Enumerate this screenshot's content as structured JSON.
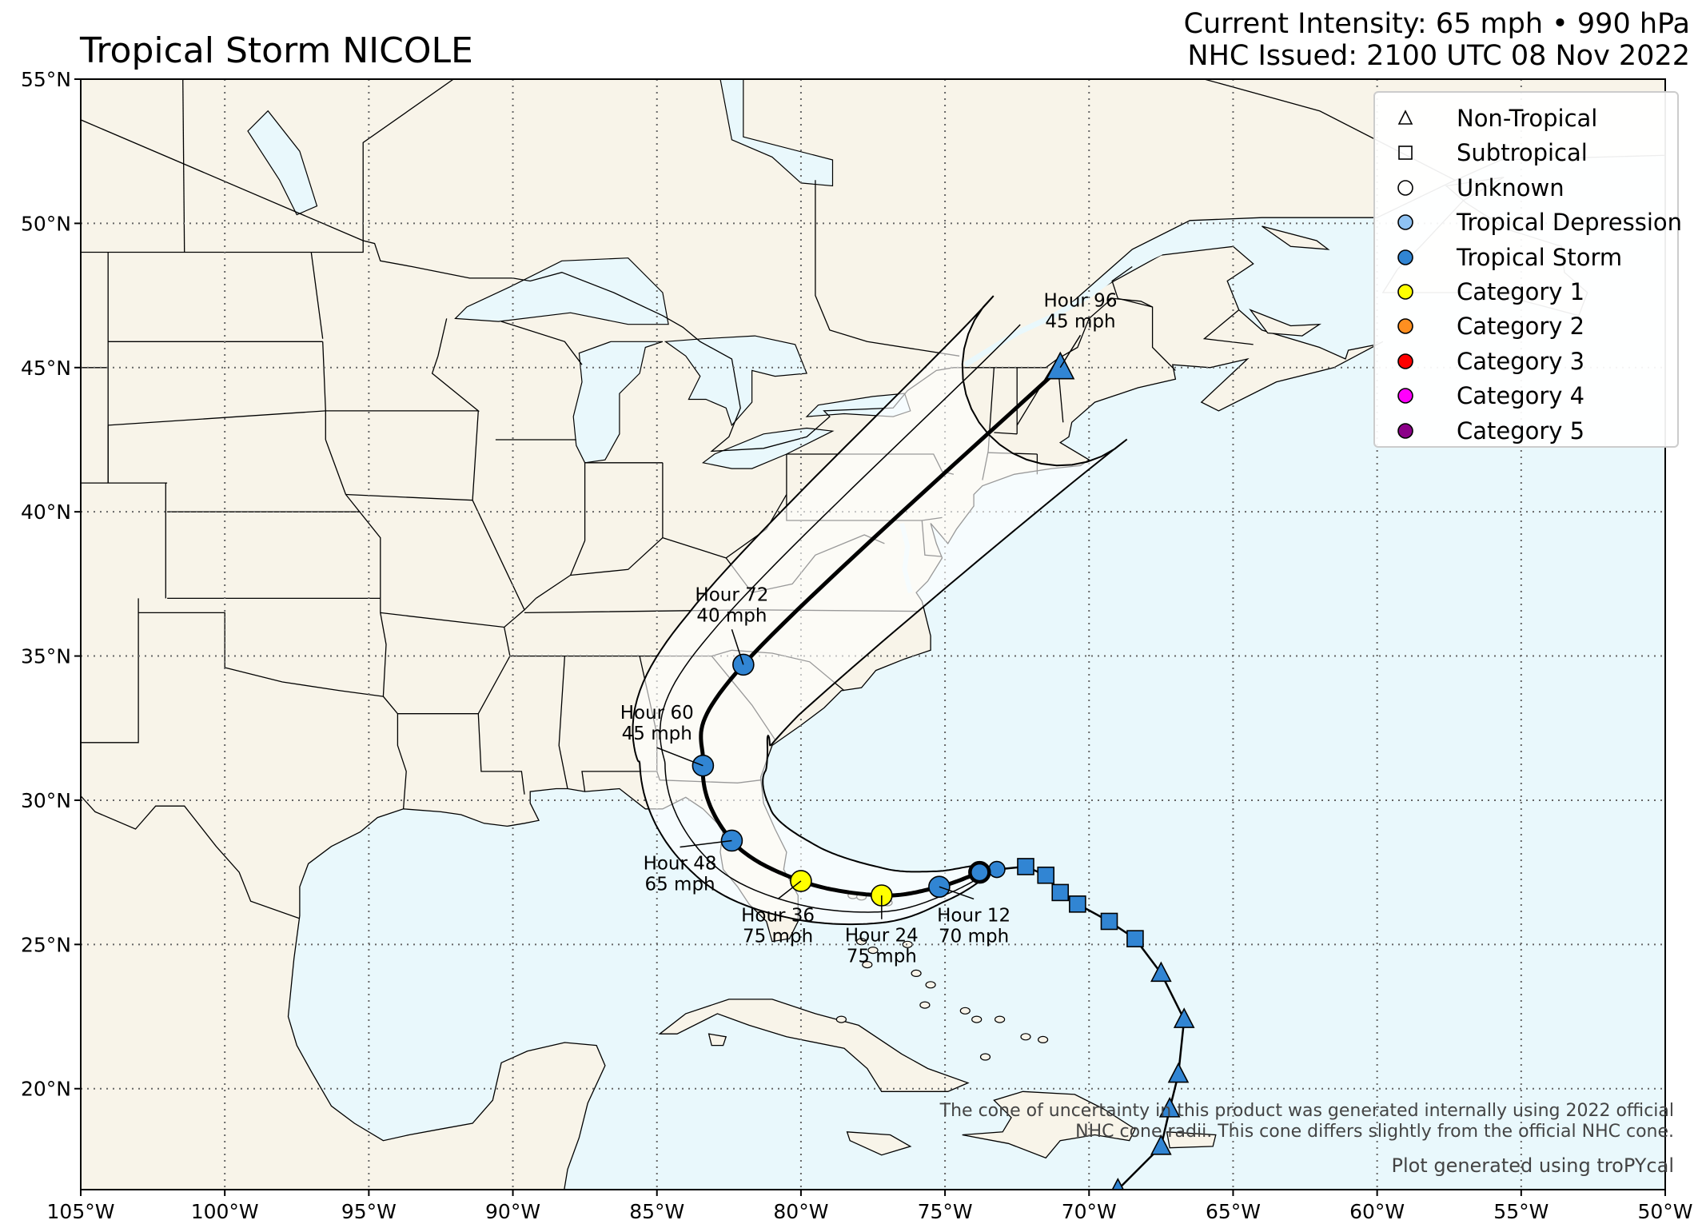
{
  "header": {
    "title": "Tropical Storm NICOLE",
    "intensity": "Current Intensity: 65 mph • 990 hPa",
    "issued": "NHC Issued: 2100 UTC 08 Nov 2022"
  },
  "map": {
    "lon_range": [
      -105,
      -50
    ],
    "lat_range": [
      16.5,
      55
    ],
    "lon_ticks": [
      {
        "value": -105,
        "label": "105°W"
      },
      {
        "value": -100,
        "label": "100°W"
      },
      {
        "value": -95,
        "label": "95°W"
      },
      {
        "value": -90,
        "label": "90°W"
      },
      {
        "value": -85,
        "label": "85°W"
      },
      {
        "value": -80,
        "label": "80°W"
      },
      {
        "value": -75,
        "label": "75°W"
      },
      {
        "value": -70,
        "label": "70°W"
      },
      {
        "value": -65,
        "label": "65°W"
      },
      {
        "value": -60,
        "label": "60°W"
      },
      {
        "value": -55,
        "label": "55°W"
      },
      {
        "value": -50,
        "label": "50°W"
      }
    ],
    "lat_ticks": [
      {
        "value": 55,
        "label": "55°N"
      },
      {
        "value": 50,
        "label": "50°N"
      },
      {
        "value": 45,
        "label": "45°N"
      },
      {
        "value": 40,
        "label": "40°N"
      },
      {
        "value": 35,
        "label": "35°N"
      },
      {
        "value": 30,
        "label": "30°N"
      },
      {
        "value": 25,
        "label": "25°N"
      },
      {
        "value": 20,
        "label": "20°N"
      }
    ],
    "colors": {
      "land": "#f8f4e9",
      "ocean": "#e9f8fc",
      "lakes": "#e9f8fc",
      "grid": "#666666",
      "border": "#000000"
    }
  },
  "storm": {
    "past_track": [
      {
        "lat": 16.5,
        "lon": -69.0,
        "type": "Non-Tropical",
        "cls": "Tropical Storm"
      },
      {
        "lat": 18.0,
        "lon": -67.5,
        "type": "Non-Tropical",
        "cls": "Tropical Storm"
      },
      {
        "lat": 19.3,
        "lon": -67.2,
        "type": "Non-Tropical",
        "cls": "Tropical Storm"
      },
      {
        "lat": 20.5,
        "lon": -66.9,
        "type": "Non-Tropical",
        "cls": "Tropical Storm"
      },
      {
        "lat": 22.4,
        "lon": -66.7,
        "type": "Non-Tropical",
        "cls": "Tropical Storm"
      },
      {
        "lat": 24.0,
        "lon": -67.5,
        "type": "Non-Tropical",
        "cls": "Tropical Storm"
      },
      {
        "lat": 25.2,
        "lon": -68.4,
        "type": "Subtropical",
        "cls": "Tropical Storm"
      },
      {
        "lat": 25.8,
        "lon": -69.3,
        "type": "Subtropical",
        "cls": "Tropical Storm"
      },
      {
        "lat": 26.4,
        "lon": -70.4,
        "type": "Subtropical",
        "cls": "Tropical Storm"
      },
      {
        "lat": 26.8,
        "lon": -71.0,
        "type": "Subtropical",
        "cls": "Tropical Storm"
      },
      {
        "lat": 27.4,
        "lon": -71.5,
        "type": "Subtropical",
        "cls": "Tropical Storm"
      },
      {
        "lat": 27.7,
        "lon": -72.2,
        "type": "Subtropical",
        "cls": "Tropical Storm"
      },
      {
        "lat": 27.6,
        "lon": -73.2,
        "type": "Tropical",
        "cls": "Tropical Storm"
      },
      {
        "lat": 27.5,
        "lon": -73.8,
        "type": "Tropical",
        "cls": "Tropical Storm"
      }
    ],
    "current": {
      "lat": 27.5,
      "lon": -73.8
    },
    "forecast": [
      {
        "hour": "Hour 12",
        "wind": "70 mph",
        "lat": 27.0,
        "lon": -75.2,
        "cls": "Tropical Storm",
        "shape": "circle",
        "lbl_dlon": 1.2,
        "lbl_dlat": -1.2
      },
      {
        "hour": "Hour 24",
        "wind": "75 mph",
        "lat": 26.7,
        "lon": -77.2,
        "cls": "Category 1",
        "shape": "circle",
        "lbl_dlon": 0.0,
        "lbl_dlat": -1.6
      },
      {
        "hour": "Hour 36",
        "wind": "75 mph",
        "lat": 27.2,
        "lon": -80.0,
        "cls": "Category 1",
        "shape": "circle",
        "lbl_dlon": -0.8,
        "lbl_dlat": -1.4
      },
      {
        "hour": "Hour 48",
        "wind": "65 mph",
        "lat": 28.6,
        "lon": -82.4,
        "cls": "Tropical Storm",
        "shape": "circle",
        "lbl_dlon": -1.8,
        "lbl_dlat": -1.0
      },
      {
        "hour": "Hour 60",
        "wind": "45 mph",
        "lat": 31.2,
        "lon": -83.4,
        "cls": "Tropical Storm",
        "shape": "circle",
        "lbl_dlon": -1.6,
        "lbl_dlat": 0.9
      },
      {
        "hour": "Hour 72",
        "wind": "40 mph",
        "lat": 34.7,
        "lon": -82.0,
        "cls": "Tropical Storm",
        "shape": "circle",
        "lbl_dlon": -0.4,
        "lbl_dlat": 1.5
      },
      {
        "hour": "Hour 96",
        "wind": "45 mph",
        "lat": 45.0,
        "lon": -71.0,
        "cls": "Tropical Storm",
        "shape": "triangle",
        "lbl_dlon": 0.7,
        "lbl_dlat": 1.4
      }
    ]
  },
  "legend": {
    "items": [
      {
        "label": "Non-Tropical",
        "shape": "triangle",
        "color": "none"
      },
      {
        "label": "Subtropical",
        "shape": "square",
        "color": "none"
      },
      {
        "label": "Unknown",
        "shape": "circle",
        "color": "none"
      },
      {
        "label": "Tropical Depression",
        "shape": "circle",
        "color": "#8fc2f2"
      },
      {
        "label": "Tropical Storm",
        "shape": "circle",
        "color": "#3185d3"
      },
      {
        "label": "Category 1",
        "shape": "circle",
        "color": "#ffff00"
      },
      {
        "label": "Category 2",
        "shape": "circle",
        "color": "#ff8f20"
      },
      {
        "label": "Category 3",
        "shape": "circle",
        "color": "#ff0000"
      },
      {
        "label": "Category 4",
        "shape": "circle",
        "color": "#ff00fc"
      },
      {
        "label": "Category 5",
        "shape": "circle",
        "color": "#8b0088"
      }
    ]
  },
  "credits": {
    "cone_note_1": "The cone of uncertainty in this product was generated internally using 2022 official",
    "cone_note_2": "NHC cone radii. This cone differs slightly from the official NHC cone.",
    "plot_credit": "Plot generated using troPYcal"
  }
}
